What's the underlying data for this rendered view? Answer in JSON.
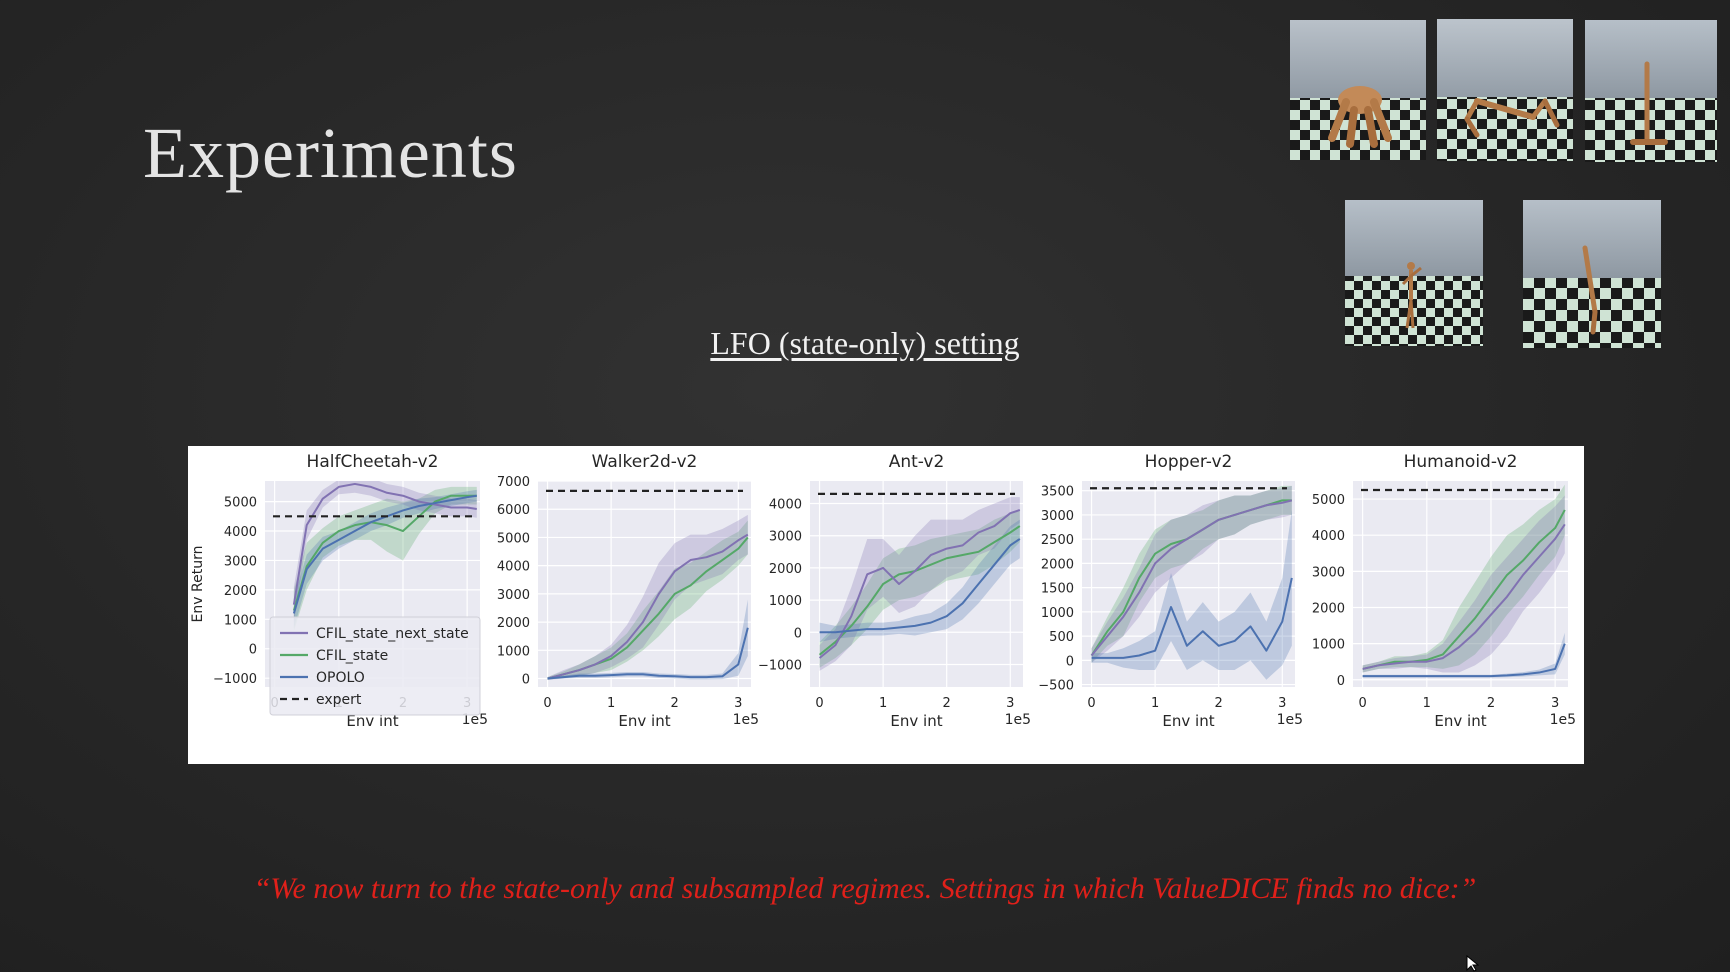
{
  "slide": {
    "title": "Experiments",
    "subtitle": "LFO (state-only) setting",
    "quote": "“We now turn to the state-only and subsampled regimes. Settings in which ValueDICE finds no dice:”"
  },
  "colors": {
    "cfil_state_next_state": "#8172b2",
    "cfil_state": "#55a868",
    "opolo": "#4c72b0",
    "expert": "#222222",
    "plot_bg": "#eaeaf2",
    "quote": "#e0201a"
  },
  "thumbnails": [
    {
      "name": "ant-render"
    },
    {
      "name": "halfcheetah-render"
    },
    {
      "name": "hopper-render"
    },
    {
      "name": "humanoid-render"
    },
    {
      "name": "walker-render"
    }
  ],
  "chart_data": [
    {
      "type": "line",
      "title": "HalfCheetah-v2",
      "xlabel": "Env int",
      "ylabel": "Env Return",
      "x_offset_label": "1e5",
      "xlim": [
        -0.15,
        3.2
      ],
      "ylim": [
        -1300,
        5700
      ],
      "xticks": [
        0,
        1,
        2,
        3
      ],
      "xtick_labels": [
        "0",
        "1",
        "2",
        "3"
      ],
      "yticks": [
        -1000,
        0,
        1000,
        2000,
        3000,
        4000,
        5000
      ],
      "ytick_labels": [
        "−1000",
        "0",
        "1000",
        "2000",
        "3000",
        "4000",
        "5000"
      ],
      "expert": 4500,
      "legend": {
        "position": "lower-right",
        "entries": [
          "CFIL_state_next_state",
          "CFIL_state",
          "OPOLO",
          "expert"
        ]
      },
      "x": [
        0.3,
        0.5,
        0.75,
        1.0,
        1.25,
        1.5,
        1.75,
        2.0,
        2.25,
        2.5,
        2.75,
        3.0,
        3.15
      ],
      "series": [
        {
          "name": "CFIL_state_next_state",
          "values": [
            1500,
            4200,
            5100,
            5500,
            5600,
            5500,
            5300,
            5200,
            5000,
            4900,
            4800,
            4800,
            4750
          ],
          "spread": [
            600,
            500,
            300,
            250,
            300,
            300,
            300,
            300,
            300,
            300,
            300,
            300,
            300
          ]
        },
        {
          "name": "CFIL_state",
          "values": [
            1300,
            2800,
            3600,
            4000,
            4200,
            4300,
            4200,
            4000,
            4500,
            5000,
            5200,
            5200,
            5200
          ],
          "spread": [
            700,
            800,
            500,
            500,
            500,
            600,
            900,
            1000,
            600,
            400,
            300,
            300,
            300
          ]
        },
        {
          "name": "OPOLO",
          "values": [
            1200,
            2700,
            3400,
            3700,
            4000,
            4300,
            4500,
            4700,
            4850,
            4950,
            5050,
            5150,
            5200
          ],
          "spread": [
            500,
            500,
            400,
            300,
            300,
            300,
            300,
            250,
            250,
            200,
            200,
            200,
            200
          ]
        }
      ]
    },
    {
      "type": "line",
      "title": "Walker2d-v2",
      "xlabel": "Env int",
      "ylabel": "",
      "x_offset_label": "1e5",
      "xlim": [
        -0.15,
        3.2
      ],
      "ylim": [
        -300,
        7000
      ],
      "xticks": [
        0,
        1,
        2,
        3
      ],
      "xtick_labels": [
        "0",
        "1",
        "2",
        "3"
      ],
      "yticks": [
        0,
        1000,
        2000,
        3000,
        4000,
        5000,
        6000,
        7000
      ],
      "ytick_labels": [
        "0",
        "1000",
        "2000",
        "3000",
        "4000",
        "5000",
        "6000",
        "7000"
      ],
      "expert": 6650,
      "x": [
        0,
        0.25,
        0.5,
        0.75,
        1.0,
        1.25,
        1.5,
        1.75,
        2.0,
        2.25,
        2.5,
        2.75,
        3.0,
        3.15
      ],
      "series": [
        {
          "name": "CFIL_state_next_state",
          "values": [
            0,
            150,
            300,
            500,
            800,
            1300,
            2000,
            3000,
            3800,
            4200,
            4300,
            4500,
            4900,
            5100
          ],
          "spread": [
            50,
            150,
            200,
            300,
            400,
            600,
            900,
            1100,
            1000,
            900,
            800,
            800,
            700,
            700
          ]
        },
        {
          "name": "CFIL_state",
          "values": [
            0,
            150,
            300,
            500,
            700,
            1100,
            1700,
            2300,
            3000,
            3300,
            3800,
            4200,
            4600,
            5000
          ],
          "spread": [
            50,
            100,
            200,
            300,
            400,
            500,
            700,
            800,
            900,
            800,
            700,
            700,
            600,
            600
          ]
        },
        {
          "name": "OPOLO",
          "values": [
            0,
            50,
            100,
            100,
            120,
            150,
            150,
            100,
            80,
            50,
            50,
            80,
            500,
            1800
          ],
          "spread": [
            30,
            50,
            80,
            80,
            80,
            80,
            80,
            80,
            80,
            80,
            80,
            100,
            400,
            1000
          ]
        }
      ]
    },
    {
      "type": "line",
      "title": "Ant-v2",
      "xlabel": "Env int",
      "ylabel": "",
      "x_offset_label": "1e5",
      "xlim": [
        -0.15,
        3.2
      ],
      "ylim": [
        -1700,
        4700
      ],
      "xticks": [
        0,
        1,
        2,
        3
      ],
      "xtick_labels": [
        "0",
        "1",
        "2",
        "3"
      ],
      "yticks": [
        -1000,
        0,
        1000,
        2000,
        3000,
        4000
      ],
      "ytick_labels": [
        "−1000",
        "0",
        "1000",
        "2000",
        "3000",
        "4000"
      ],
      "expert": 4300,
      "x": [
        0,
        0.25,
        0.5,
        0.75,
        1.0,
        1.25,
        1.5,
        1.75,
        2.0,
        2.25,
        2.5,
        2.75,
        3.0,
        3.15
      ],
      "series": [
        {
          "name": "CFIL_state_next_state",
          "values": [
            -800,
            -400,
            500,
            1800,
            2000,
            1500,
            1900,
            2400,
            2600,
            2700,
            3100,
            3300,
            3700,
            3800
          ],
          "spread": [
            400,
            500,
            900,
            1100,
            900,
            900,
            1100,
            1100,
            900,
            800,
            700,
            700,
            500,
            400
          ]
        },
        {
          "name": "CFIL_state",
          "values": [
            -700,
            -300,
            200,
            800,
            1500,
            1800,
            1900,
            2100,
            2300,
            2400,
            2500,
            2800,
            3100,
            3300
          ],
          "spread": [
            400,
            500,
            600,
            700,
            800,
            800,
            800,
            800,
            700,
            700,
            700,
            700,
            600,
            500
          ]
        },
        {
          "name": "OPOLO",
          "values": [
            0,
            0,
            50,
            100,
            100,
            150,
            200,
            300,
            500,
            900,
            1500,
            2100,
            2700,
            2900
          ],
          "spread": [
            300,
            200,
            200,
            200,
            200,
            200,
            300,
            300,
            400,
            500,
            600,
            600,
            600,
            600
          ]
        }
      ]
    },
    {
      "type": "line",
      "title": "Hopper-v2",
      "xlabel": "Env int",
      "ylabel": "",
      "x_offset_label": "1e5",
      "xlim": [
        -0.15,
        3.2
      ],
      "ylim": [
        -550,
        3700
      ],
      "xticks": [
        0,
        1,
        2,
        3
      ],
      "xtick_labels": [
        "0",
        "1",
        "2",
        "3"
      ],
      "yticks": [
        -500,
        0,
        500,
        1000,
        1500,
        2000,
        2500,
        3000,
        3500
      ],
      "ytick_labels": [
        "−500",
        "0",
        "500",
        "1000",
        "1500",
        "2000",
        "2500",
        "3000",
        "3500"
      ],
      "expert": 3550,
      "x": [
        0,
        0.25,
        0.5,
        0.75,
        1.0,
        1.25,
        1.5,
        1.75,
        2.0,
        2.25,
        2.5,
        2.75,
        3.0,
        3.15
      ],
      "series": [
        {
          "name": "CFIL_state_next_state",
          "values": [
            100,
            500,
            900,
            1400,
            2000,
            2300,
            2500,
            2700,
            2900,
            3000,
            3100,
            3200,
            3250,
            3300
          ],
          "spread": [
            150,
            300,
            400,
            500,
            600,
            600,
            500,
            500,
            400,
            400,
            300,
            300,
            300,
            300
          ]
        },
        {
          "name": "CFIL_state",
          "values": [
            100,
            600,
            1000,
            1700,
            2200,
            2400,
            2500,
            2700,
            2900,
            3000,
            3100,
            3200,
            3300,
            3300
          ],
          "spread": [
            150,
            300,
            500,
            500,
            500,
            500,
            500,
            400,
            400,
            400,
            300,
            300,
            300,
            300
          ]
        },
        {
          "name": "OPOLO",
          "values": [
            50,
            50,
            50,
            100,
            200,
            1100,
            300,
            600,
            300,
            400,
            700,
            200,
            800,
            1700
          ],
          "spread": [
            100,
            100,
            200,
            300,
            400,
            700,
            500,
            600,
            500,
            600,
            700,
            600,
            900,
            1400
          ]
        }
      ]
    },
    {
      "type": "line",
      "title": "Humanoid-v2",
      "xlabel": "Env int",
      "ylabel": "",
      "x_offset_label": "1e5",
      "xlim": [
        -0.15,
        3.2
      ],
      "ylim": [
        -200,
        5500
      ],
      "xticks": [
        0,
        1,
        2,
        3
      ],
      "xtick_labels": [
        "0",
        "1",
        "2",
        "3"
      ],
      "yticks": [
        0,
        1000,
        2000,
        3000,
        4000,
        5000
      ],
      "ytick_labels": [
        "0",
        "1000",
        "2000",
        "3000",
        "4000",
        "5000"
      ],
      "expert": 5250,
      "x": [
        0,
        0.25,
        0.5,
        0.75,
        1.0,
        1.25,
        1.5,
        1.75,
        2.0,
        2.25,
        2.5,
        2.75,
        3.0,
        3.15
      ],
      "series": [
        {
          "name": "CFIL_state_next_state",
          "values": [
            300,
            400,
            450,
            500,
            500,
            600,
            900,
            1300,
            1800,
            2300,
            2900,
            3400,
            3900,
            4300
          ],
          "spread": [
            100,
            100,
            150,
            150,
            200,
            400,
            700,
            900,
            1100,
            1100,
            1000,
            1000,
            900,
            800
          ]
        },
        {
          "name": "CFIL_state",
          "values": [
            300,
            400,
            500,
            500,
            550,
            700,
            1200,
            1700,
            2300,
            2900,
            3300,
            3800,
            4200,
            4700
          ],
          "spread": [
            100,
            100,
            150,
            150,
            200,
            400,
            800,
            1000,
            1100,
            1100,
            1000,
            900,
            800,
            700
          ]
        },
        {
          "name": "OPOLO",
          "values": [
            100,
            100,
            100,
            100,
            100,
            100,
            100,
            100,
            100,
            120,
            150,
            200,
            300,
            1000
          ],
          "spread": [
            40,
            40,
            40,
            40,
            40,
            40,
            40,
            40,
            40,
            50,
            60,
            80,
            150,
            300
          ]
        }
      ]
    }
  ]
}
